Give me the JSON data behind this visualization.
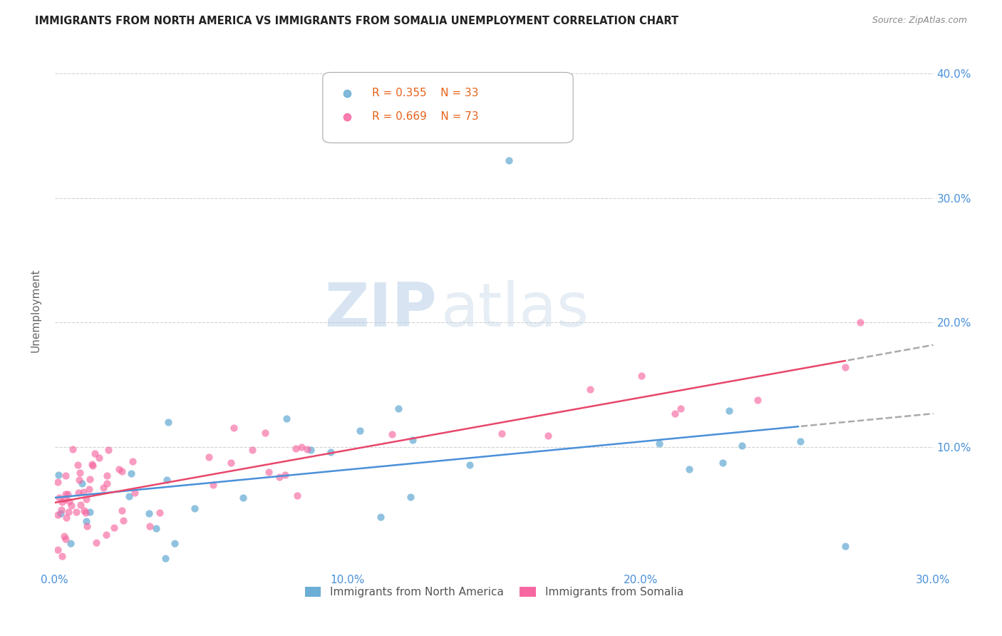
{
  "title": "IMMIGRANTS FROM NORTH AMERICA VS IMMIGRANTS FROM SOMALIA UNEMPLOYMENT CORRELATION CHART",
  "source": "Source: ZipAtlas.com",
  "ylabel": "Unemployment",
  "xlim": [
    0.0,
    0.3
  ],
  "ylim": [
    0.0,
    0.42
  ],
  "color_north_america": "#6baed6",
  "color_somalia": "#f768a1",
  "color_trend_na": "#4a90d9",
  "color_trend_som": "#e8476a",
  "color_trend_dash": "#aaaaaa",
  "R_north_america": 0.355,
  "N_north_america": 33,
  "R_somalia": 0.669,
  "N_somalia": 73,
  "watermark_zip": "ZIP",
  "watermark_atlas": "atlas",
  "legend_label_na": "Immigrants from North America",
  "legend_label_som": "Immigrants from Somalia"
}
